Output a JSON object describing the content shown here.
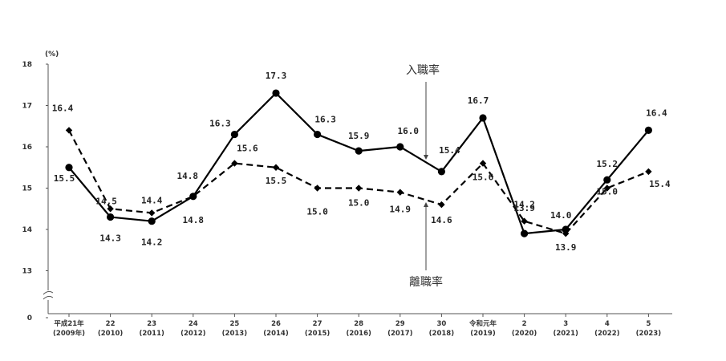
{
  "chart_data": {
    "type": "line",
    "unit_label": "(%)",
    "y_ticks": [
      "18",
      "17",
      "16",
      "15",
      "14",
      "13",
      "0"
    ],
    "ylim": [
      13,
      18
    ],
    "y_axis_break": true,
    "grid": false,
    "categories": [
      [
        "平成21年",
        "(2009年)"
      ],
      [
        "22",
        "(2010)"
      ],
      [
        "23",
        "(2011)"
      ],
      [
        "24",
        "(2012)"
      ],
      [
        "25",
        "(2013)"
      ],
      [
        "26",
        "(2014)"
      ],
      [
        "27",
        "(2015)"
      ],
      [
        "28",
        "(2016)"
      ],
      [
        "29",
        "(2017)"
      ],
      [
        "30",
        "(2018)"
      ],
      [
        "令和元年",
        "(2019)"
      ],
      [
        "2",
        "(2020)"
      ],
      [
        "3",
        "(2021)"
      ],
      [
        "4",
        "(2022)"
      ],
      [
        "5",
        "(2023)"
      ]
    ],
    "series": [
      {
        "name": "入職率",
        "style": "solid",
        "marker": "circle",
        "color": "#000000",
        "values": [
          15.5,
          14.3,
          14.2,
          14.8,
          16.3,
          17.3,
          16.3,
          15.9,
          16.0,
          15.4,
          16.7,
          13.9,
          14.0,
          15.2,
          16.4
        ],
        "labels": [
          "15.5",
          "14.3",
          "14.2",
          "14.8",
          "16.3",
          "17.3",
          "16.3",
          "15.9",
          "16.0",
          "15.4",
          "16.7",
          "13.9",
          "14.0",
          "15.2",
          "16.4"
        ]
      },
      {
        "name": "離職率",
        "style": "dashed",
        "marker": "diamond",
        "color": "#000000",
        "values": [
          16.4,
          14.5,
          14.4,
          14.8,
          15.6,
          15.5,
          15.0,
          15.0,
          14.9,
          14.6,
          15.6,
          14.2,
          13.9,
          15.0,
          15.4
        ],
        "labels": [
          "16.4",
          "14.5",
          "14.4",
          "14.8",
          "15.6",
          "15.5",
          "15.0",
          "15.0",
          "14.9",
          "14.6",
          "15.6",
          "14.2",
          "13.9",
          "15.0",
          "15.4"
        ]
      }
    ],
    "annotations": [
      "入職率",
      "離職率"
    ]
  }
}
